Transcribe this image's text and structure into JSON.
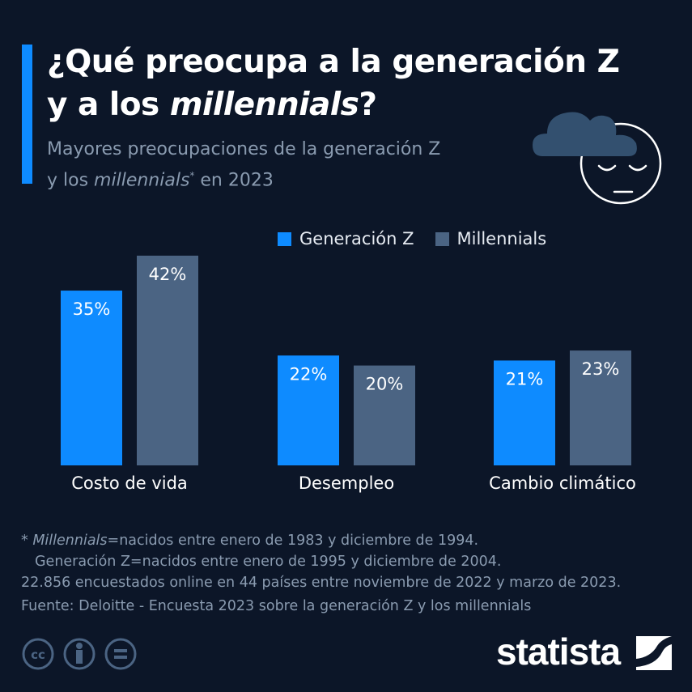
{
  "title_line1": "¿Qué preocupa a la generación Z",
  "title_line2_pre": "y a los ",
  "title_line2_em": "millennials",
  "title_line2_post": "?",
  "subtitle_line1": "Mayores preocupaciones de la generación Z",
  "subtitle_line2_pre": "y los ",
  "subtitle_line2_em": "millennials",
  "subtitle_line2_sup": "*",
  "subtitle_line2_post": " en 2023",
  "colors": {
    "background": "#0c1628",
    "generacion_z": "#0e8bff",
    "millennials": "#4b6483",
    "accent": "#0e8bff"
  },
  "chart_data": {
    "type": "bar",
    "categories": [
      "Costo de vida",
      "Desempleo",
      "Cambio climático"
    ],
    "series": [
      {
        "name": "Generación Z",
        "values": [
          35,
          22,
          21
        ],
        "color": "#0e8bff"
      },
      {
        "name": "Millennials",
        "values": [
          42,
          20,
          23
        ],
        "color": "#4b6483"
      }
    ],
    "value_suffix": "%",
    "legend": "top",
    "grid": false,
    "ylim": [
      0,
      42
    ]
  },
  "footnotes": {
    "line1_star": "* ",
    "line1_em": "Millennials",
    "line1_rest": "=nacidos entre enero de 1983 y diciembre de 1994.",
    "line2": "Generación Z=nacidos entre enero de 1995 y diciembre de 2004.",
    "line3": "22.856 encuestados online en 44 países entre noviembre de 2022 y marzo de 2023.",
    "source": "Fuente: Deloitte - Encuesta 2023 sobre la generación Z y los millennials"
  },
  "license_icons": [
    "cc-icon",
    "by-icon",
    "nd-icon"
  ],
  "brand": {
    "logo_text": "statista"
  }
}
